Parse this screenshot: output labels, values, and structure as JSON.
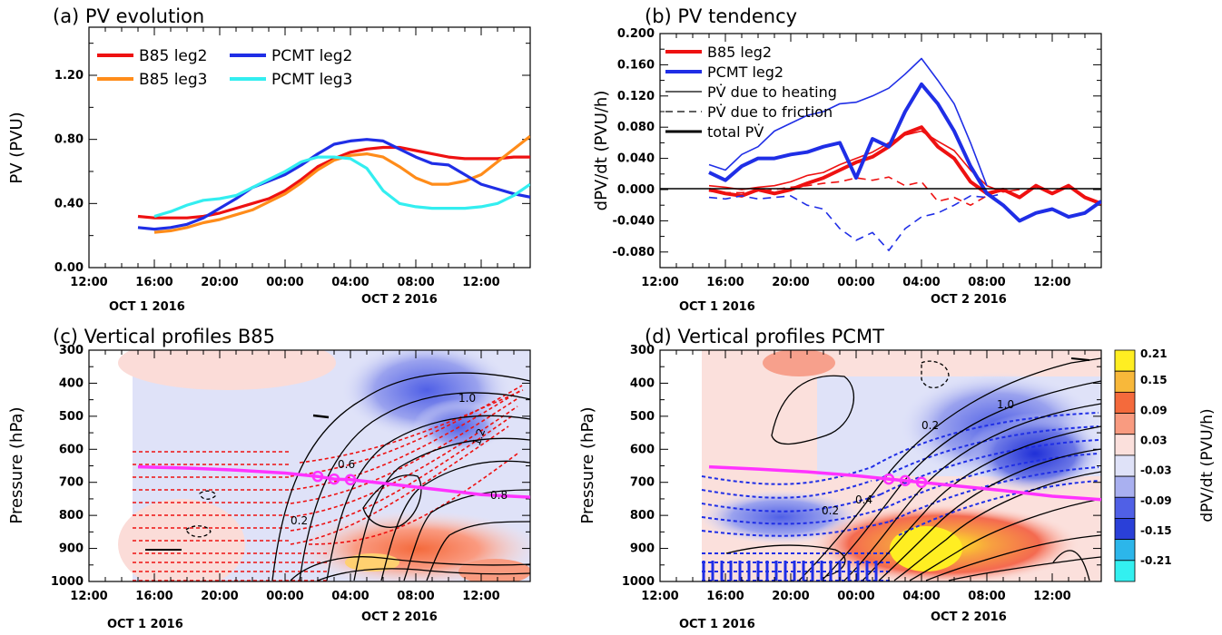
{
  "panels": {
    "a": {
      "title": "(a) PV evolution",
      "ylabel": "PV (PVU)"
    },
    "b": {
      "title": "(b) PV tendency",
      "ylabel": "dPV/dt (PVU/h)"
    },
    "c": {
      "title": "(c) Vertical profiles B85",
      "ylabel": "Pressure (hPa)"
    },
    "d": {
      "title": "(d) Vertical profiles PCMT",
      "ylabel": "Pressure (hPa)"
    }
  },
  "time_axis": {
    "ticks": [
      "12:00",
      "16:00",
      "20:00",
      "00:00",
      "04:00",
      "08:00",
      "12:00"
    ],
    "date1": "OCT 1 2016",
    "date2": "OCT 2 2016"
  },
  "colors": {
    "B85_leg2": "#ee1111",
    "B85_leg3": "#ff8c1a",
    "PCMT_leg2": "#1f2ee6",
    "PCMT_leg3": "#33eef0",
    "magenta": "#ff33ff"
  },
  "colorbar": {
    "label": "dPV/dt (PVU/h)",
    "labels": [
      "0.21",
      "0.15",
      "0.09",
      "0.03",
      "-0.03",
      "-0.09",
      "-0.15",
      "-0.21"
    ]
  },
  "contour_labels": {
    "c": [
      "1.0",
      "1.2",
      "0.6",
      "0.2",
      "0.8"
    ],
    "d": [
      "0.2",
      "1.0",
      "0.2",
      "0.4"
    ]
  },
  "chart_data": [
    {
      "panel": "a",
      "type": "line",
      "title": "(a) PV evolution",
      "ylabel": "PV (PVU)",
      "xlim": [
        -12,
        15
      ],
      "ylim": [
        0,
        1.5
      ],
      "yticks": [
        "0.00",
        "0.40",
        "0.80",
        "1.20"
      ],
      "legend": [
        "B85 leg2",
        "B85 leg3",
        "PCMT leg2",
        "PCMT leg3"
      ],
      "series": [
        {
          "name": "B85 leg2",
          "x": [
            -9,
            -8,
            -7,
            -6,
            -5,
            -4,
            -3,
            -2,
            -1,
            0,
            1,
            2,
            3,
            4,
            5,
            6,
            7,
            8,
            9,
            10,
            11,
            12,
            13,
            14,
            15
          ],
          "values": [
            0.32,
            0.31,
            0.31,
            0.31,
            0.32,
            0.34,
            0.37,
            0.4,
            0.43,
            0.48,
            0.55,
            0.63,
            0.68,
            0.72,
            0.74,
            0.75,
            0.75,
            0.73,
            0.71,
            0.69,
            0.68,
            0.68,
            0.68,
            0.69,
            0.69
          ]
        },
        {
          "name": "B85 leg3",
          "x": [
            -8,
            -7,
            -6,
            -5,
            -4,
            -3,
            -2,
            -1,
            0,
            1,
            2,
            3,
            4,
            5,
            6,
            7,
            8,
            9,
            10,
            11,
            12,
            13,
            14,
            15
          ],
          "values": [
            0.22,
            0.23,
            0.25,
            0.28,
            0.3,
            0.33,
            0.36,
            0.41,
            0.46,
            0.53,
            0.61,
            0.67,
            0.7,
            0.71,
            0.69,
            0.63,
            0.56,
            0.52,
            0.52,
            0.54,
            0.58,
            0.66,
            0.74,
            0.82
          ]
        },
        {
          "name": "PCMT leg2",
          "x": [
            -9,
            -8,
            -7,
            -6,
            -5,
            -4,
            -3,
            -2,
            -1,
            0,
            1,
            2,
            3,
            4,
            5,
            6,
            7,
            8,
            9,
            10,
            11,
            12,
            13,
            14,
            15
          ],
          "values": [
            0.25,
            0.24,
            0.25,
            0.27,
            0.31,
            0.37,
            0.43,
            0.5,
            0.54,
            0.58,
            0.64,
            0.71,
            0.77,
            0.79,
            0.8,
            0.79,
            0.74,
            0.69,
            0.65,
            0.64,
            0.58,
            0.52,
            0.49,
            0.46,
            0.44
          ]
        },
        {
          "name": "PCMT leg3",
          "x": [
            -8,
            -7,
            -6,
            -5,
            -4,
            -3,
            -2,
            -1,
            0,
            1,
            2,
            3,
            4,
            5,
            6,
            7,
            8,
            9,
            10,
            11,
            12,
            13,
            14,
            15
          ],
          "values": [
            0.32,
            0.35,
            0.39,
            0.42,
            0.43,
            0.45,
            0.5,
            0.55,
            0.6,
            0.66,
            0.69,
            0.69,
            0.68,
            0.62,
            0.48,
            0.4,
            0.38,
            0.37,
            0.37,
            0.37,
            0.38,
            0.4,
            0.45,
            0.52
          ]
        }
      ]
    },
    {
      "panel": "b",
      "type": "line",
      "title": "(b) PV tendency",
      "ylabel": "dPV/dt (PVU/h)",
      "xlim": [
        -12,
        15
      ],
      "ylim": [
        -0.1,
        0.2
      ],
      "yticks": [
        "-0.080",
        "-0.040",
        "0.000",
        "0.040",
        "0.080",
        "0.120",
        "0.160",
        "0.200"
      ],
      "legend": [
        "B85 leg2",
        "PCMT leg2",
        "PV̇ due to heating",
        "PV̇ due to friction",
        "total PV̇"
      ],
      "series": [
        {
          "name": "B85 leg2 PV̇ due to heating",
          "style": "thin",
          "x": [
            -9,
            -8,
            -7,
            -6,
            -5,
            -4,
            -3,
            -2,
            -1,
            0,
            1,
            2,
            3,
            4,
            5,
            6,
            7,
            8,
            9,
            10
          ],
          "values": [
            0.005,
            0.003,
            0.0,
            0.003,
            0.005,
            0.01,
            0.018,
            0.022,
            0.032,
            0.04,
            0.048,
            0.06,
            0.07,
            0.075,
            0.062,
            0.05,
            0.025,
            0.005,
            -0.003,
            0.0
          ]
        },
        {
          "name": "B85 leg2 PV̇ due to friction",
          "style": "dashed",
          "x": [
            -9,
            -8,
            -7,
            -6,
            -5,
            -4,
            -3,
            -2,
            -1,
            0,
            1,
            2,
            3,
            4,
            5,
            6,
            7,
            8,
            9
          ],
          "values": [
            -0.002,
            -0.004,
            -0.004,
            -0.002,
            0.0,
            0.003,
            0.005,
            0.008,
            0.01,
            0.015,
            0.012,
            0.016,
            0.005,
            0.01,
            -0.015,
            -0.01,
            -0.02,
            -0.008,
            0.0
          ]
        },
        {
          "name": "B85 leg2 total PV̇",
          "style": "thick",
          "x": [
            -9,
            -8,
            -7,
            -6,
            -5,
            -4,
            -3,
            -2,
            -1,
            0,
            1,
            2,
            3,
            4,
            5,
            6,
            7,
            8,
            9,
            10,
            11,
            12,
            13,
            14,
            15
          ],
          "values": [
            0.0,
            -0.005,
            -0.008,
            0.0,
            -0.005,
            0.0,
            0.008,
            0.015,
            0.025,
            0.035,
            0.042,
            0.055,
            0.072,
            0.08,
            0.055,
            0.04,
            0.01,
            -0.005,
            0.0,
            -0.01,
            0.005,
            -0.005,
            0.005,
            -0.01,
            -0.018
          ]
        },
        {
          "name": "PCMT leg2 PV̇ due to heating",
          "style": "thin",
          "x": [
            -9,
            -8,
            -7,
            -6,
            -5,
            -4,
            -3,
            -2,
            -1,
            0,
            1,
            2,
            3,
            4,
            5,
            6,
            7,
            8
          ],
          "values": [
            0.032,
            0.025,
            0.045,
            0.055,
            0.075,
            0.085,
            0.095,
            0.1,
            0.11,
            0.112,
            0.12,
            0.13,
            0.148,
            0.168,
            0.14,
            0.11,
            0.06,
            0.005
          ]
        },
        {
          "name": "PCMT leg2 PV̇ due to friction",
          "style": "dashed",
          "x": [
            -9,
            -8,
            -7,
            -6,
            -5,
            -4,
            -3,
            -2,
            -1,
            0,
            1,
            2,
            3,
            4,
            5,
            6,
            7,
            8,
            9
          ],
          "values": [
            -0.01,
            -0.012,
            -0.008,
            -0.012,
            -0.01,
            -0.008,
            -0.02,
            -0.025,
            -0.05,
            -0.065,
            -0.055,
            -0.078,
            -0.05,
            -0.035,
            -0.03,
            -0.02,
            -0.008,
            -0.01,
            -0.005
          ]
        },
        {
          "name": "PCMT leg2 total PV̇",
          "style": "thick",
          "x": [
            -9,
            -8,
            -7,
            -6,
            -5,
            -4,
            -3,
            -2,
            -1,
            0,
            1,
            2,
            3,
            4,
            5,
            6,
            7,
            8,
            9,
            10,
            11,
            12,
            13,
            14,
            15
          ],
          "values": [
            0.022,
            0.012,
            0.03,
            0.04,
            0.04,
            0.045,
            0.048,
            0.055,
            0.06,
            0.015,
            0.065,
            0.055,
            0.1,
            0.135,
            0.11,
            0.075,
            0.03,
            -0.005,
            -0.02,
            -0.04,
            -0.03,
            -0.025,
            -0.035,
            -0.03,
            -0.015
          ]
        }
      ]
    },
    {
      "panel": "c",
      "type": "heatmap",
      "title": "(c) Vertical profiles B85",
      "ylabel": "Pressure (hPa)",
      "xlim": [
        -12,
        15
      ],
      "ylim": [
        1000,
        300
      ],
      "yticks": [
        "300",
        "400",
        "500",
        "600",
        "700",
        "800",
        "900",
        "1000"
      ],
      "magenta_line": {
        "x": [
          -9,
          -6,
          -3,
          0,
          2,
          3,
          4,
          6,
          9,
          12,
          15
        ],
        "values": [
          653,
          657,
          663,
          672,
          682,
          690,
          692,
          703,
          720,
          737,
          745
        ]
      }
    },
    {
      "panel": "d",
      "type": "heatmap",
      "title": "(d) Vertical profiles PCMT",
      "ylabel": "Pressure (hPa)",
      "xlim": [
        -12,
        15
      ],
      "ylim": [
        1000,
        300
      ],
      "yticks": [
        "300",
        "400",
        "500",
        "600",
        "700",
        "800",
        "900",
        "1000"
      ],
      "magenta_line": {
        "x": [
          -9,
          -6,
          -3,
          0,
          2,
          3,
          4,
          6,
          9,
          12,
          15
        ],
        "values": [
          653,
          660,
          668,
          680,
          690,
          695,
          700,
          710,
          725,
          742,
          752
        ]
      }
    }
  ]
}
